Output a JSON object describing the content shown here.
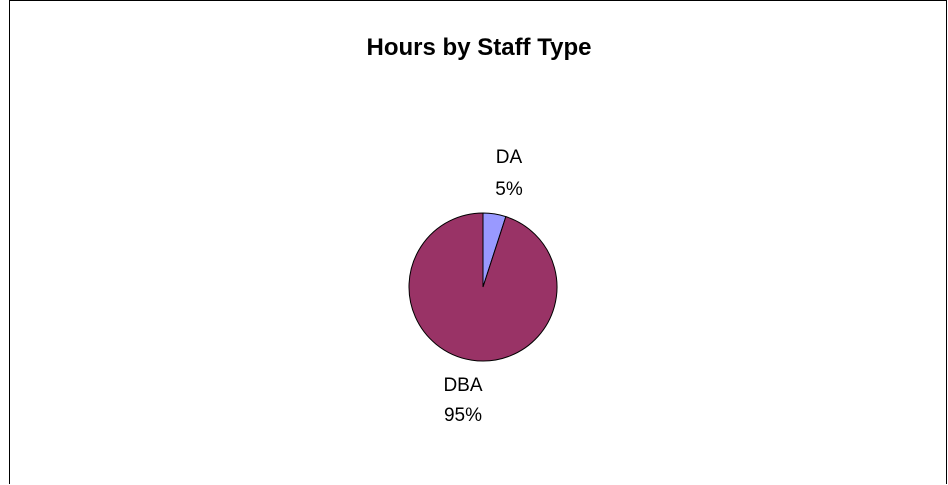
{
  "chart_data": {
    "type": "pie",
    "title": "Hours by Staff Type",
    "slices": [
      {
        "label": "DA",
        "percent_label": "5%",
        "value": 5,
        "color": "#9999FF"
      },
      {
        "label": "DBA",
        "percent_label": "95%",
        "value": 95,
        "color": "#993366"
      }
    ],
    "start_angle_deg": 0,
    "direction": "clockwise",
    "border_color": "#000000"
  }
}
